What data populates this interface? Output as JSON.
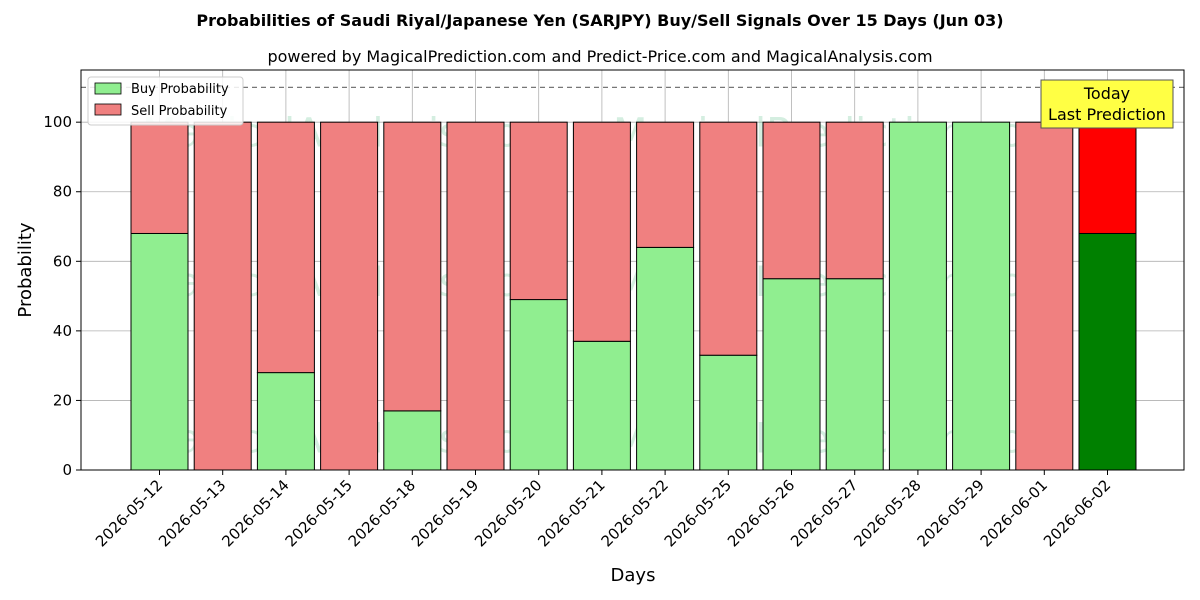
{
  "chart_data": {
    "type": "bar",
    "stacked": true,
    "title": "Probabilities of Saudi Riyal/Japanese Yen (SARJPY) Buy/Sell Signals Over 15 Days (Jun 03)",
    "subtitle": "powered by MagicalPrediction.com and Predict-Price.com and MagicalAnalysis.com",
    "xlabel": "Days",
    "ylabel": "Probability",
    "ylim": [
      0,
      115
    ],
    "yticks": [
      0,
      20,
      40,
      60,
      80,
      100
    ],
    "grid": true,
    "reference_line": 110,
    "legend_position": "top-left",
    "categories": [
      "2026-05-12",
      "2026-05-13",
      "2026-05-14",
      "2026-05-15",
      "2026-05-18",
      "2026-05-19",
      "2026-05-20",
      "2026-05-21",
      "2026-05-22",
      "2026-05-25",
      "2026-05-26",
      "2026-05-27",
      "2026-05-28",
      "2026-05-29",
      "2026-06-01",
      "2026-06-02"
    ],
    "series": [
      {
        "name": "Buy Probability",
        "color": "#90ee90",
        "values": [
          68,
          0,
          28,
          0,
          17,
          0,
          49,
          37,
          64,
          33,
          55,
          55,
          100,
          100,
          0,
          68
        ]
      },
      {
        "name": "Sell Probability",
        "color": "#f08080",
        "values": [
          32,
          100,
          72,
          100,
          83,
          100,
          51,
          63,
          36,
          67,
          45,
          45,
          0,
          0,
          100,
          32
        ]
      }
    ],
    "highlight": {
      "index": 15,
      "buy_color": "#008000",
      "sell_color": "#ff0000"
    },
    "annotation": {
      "lines": [
        "Today",
        "Last Prediction"
      ],
      "background": "#ffff44"
    },
    "watermark": [
      "MagicalAnalysis.com",
      "MagicalPrediction.com"
    ]
  }
}
